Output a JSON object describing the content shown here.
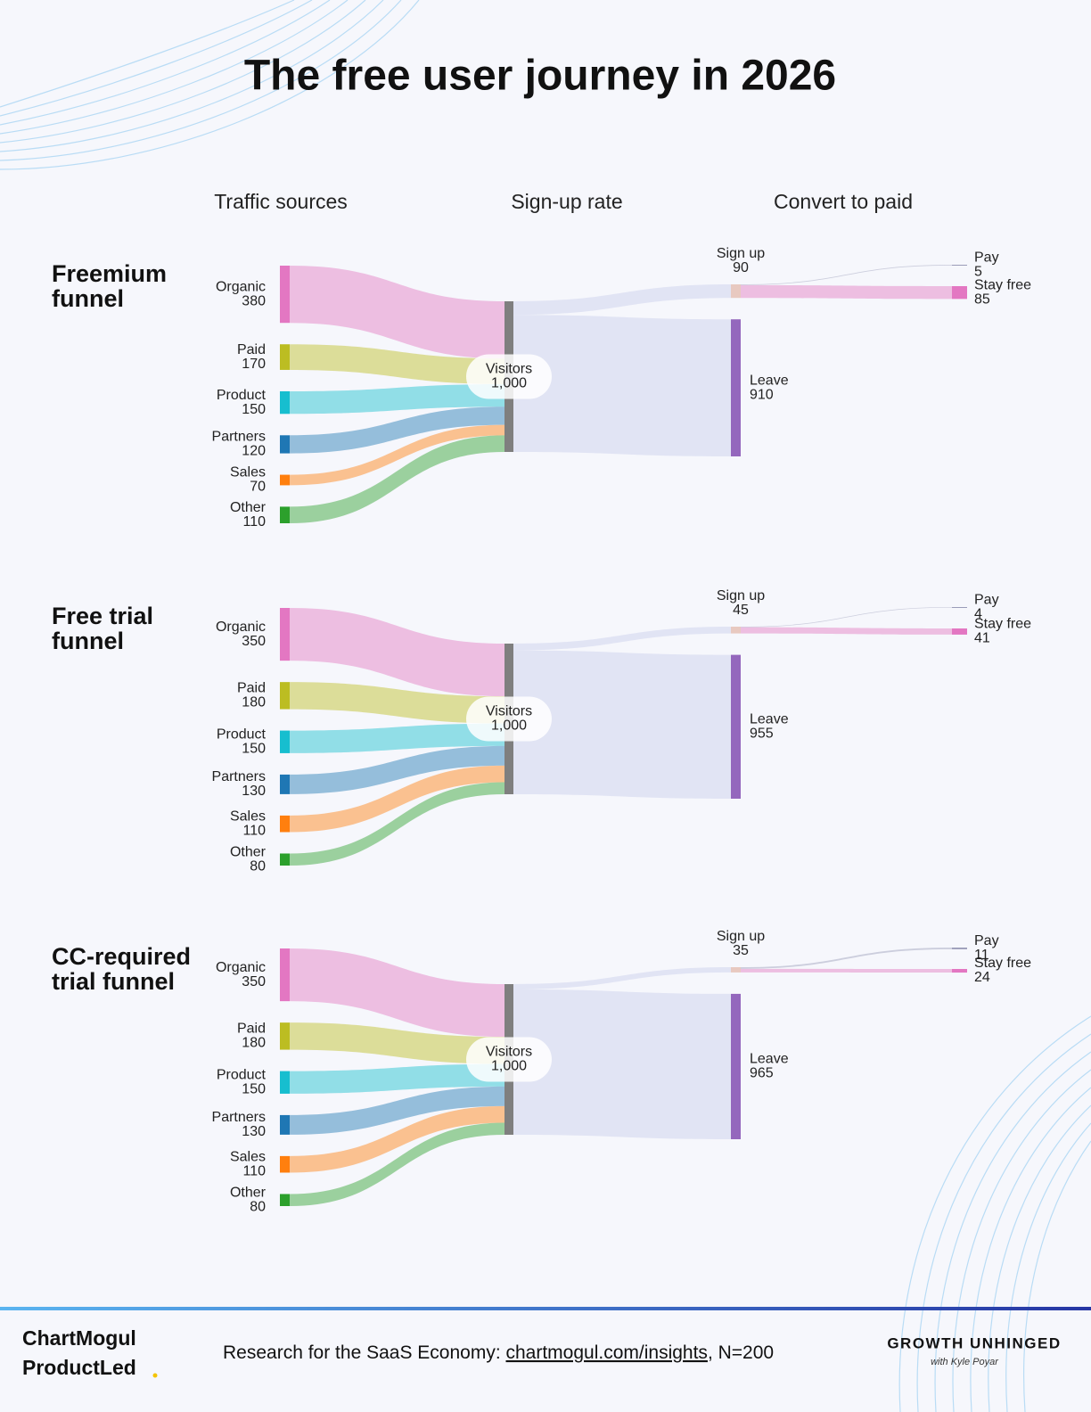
{
  "title": "The free user journey in 2026",
  "column_headers": [
    "Traffic sources",
    "Sign-up rate",
    "Convert to paid"
  ],
  "chart_data": [
    {
      "type": "sankey",
      "title": "Freemium funnel",
      "nodes": [
        {
          "name": "Organic",
          "value": 380,
          "color": "#e377c2"
        },
        {
          "name": "Paid",
          "value": 170,
          "color": "#bcbd22"
        },
        {
          "name": "Product",
          "value": 150,
          "color": "#17becf"
        },
        {
          "name": "Partners",
          "value": 120,
          "color": "#1f77b4"
        },
        {
          "name": "Sales",
          "value": 70,
          "color": "#ff7f0e"
        },
        {
          "name": "Other",
          "value": 110,
          "color": "#2ca02c"
        },
        {
          "name": "Visitors",
          "value": 1000,
          "value_label": "1,000",
          "color": "#7f7f7f"
        },
        {
          "name": "Sign up",
          "value": 90,
          "color": "#e8c9c0"
        },
        {
          "name": "Leave",
          "value": 910,
          "color": "#9467bd"
        },
        {
          "name": "Pay",
          "value": 5,
          "color": "#9a9cb8"
        },
        {
          "name": "Stay free",
          "value": 85,
          "color": "#e377c2"
        }
      ],
      "links": [
        {
          "source": 0,
          "target": 6
        },
        {
          "source": 1,
          "target": 6
        },
        {
          "source": 2,
          "target": 6
        },
        {
          "source": 3,
          "target": 6
        },
        {
          "source": 4,
          "target": 6
        },
        {
          "source": 5,
          "target": 6
        },
        {
          "source": 6,
          "target": 7,
          "color": "#c7cdec"
        },
        {
          "source": 6,
          "target": 8,
          "color": "#c7cdec"
        },
        {
          "source": 7,
          "target": 9,
          "color": "#9a9cb8"
        },
        {
          "source": 7,
          "target": 10,
          "color": "#e377c2"
        }
      ]
    },
    {
      "type": "sankey",
      "title": "Free trial funnel",
      "nodes": [
        {
          "name": "Organic",
          "value": 350,
          "color": "#e377c2"
        },
        {
          "name": "Paid",
          "value": 180,
          "color": "#bcbd22"
        },
        {
          "name": "Product",
          "value": 150,
          "color": "#17becf"
        },
        {
          "name": "Partners",
          "value": 130,
          "color": "#1f77b4"
        },
        {
          "name": "Sales",
          "value": 110,
          "color": "#ff7f0e"
        },
        {
          "name": "Other",
          "value": 80,
          "color": "#2ca02c"
        },
        {
          "name": "Visitors",
          "value": 1000,
          "value_label": "1,000",
          "color": "#7f7f7f"
        },
        {
          "name": "Sign up",
          "value": 45,
          "color": "#e8c9c0"
        },
        {
          "name": "Leave",
          "value": 955,
          "color": "#9467bd"
        },
        {
          "name": "Pay",
          "value": 4,
          "color": "#9a9cb8"
        },
        {
          "name": "Stay free",
          "value": 41,
          "color": "#e377c2"
        }
      ],
      "links": [
        {
          "source": 0,
          "target": 6
        },
        {
          "source": 1,
          "target": 6
        },
        {
          "source": 2,
          "target": 6
        },
        {
          "source": 3,
          "target": 6
        },
        {
          "source": 4,
          "target": 6
        },
        {
          "source": 5,
          "target": 6
        },
        {
          "source": 6,
          "target": 7,
          "color": "#c7cdec"
        },
        {
          "source": 6,
          "target": 8,
          "color": "#c7cdec"
        },
        {
          "source": 7,
          "target": 9,
          "color": "#9a9cb8"
        },
        {
          "source": 7,
          "target": 10,
          "color": "#e377c2"
        }
      ]
    },
    {
      "type": "sankey",
      "title": "CC-required trial funnel",
      "nodes": [
        {
          "name": "Organic",
          "value": 350,
          "color": "#e377c2"
        },
        {
          "name": "Paid",
          "value": 180,
          "color": "#bcbd22"
        },
        {
          "name": "Product",
          "value": 150,
          "color": "#17becf"
        },
        {
          "name": "Partners",
          "value": 130,
          "color": "#1f77b4"
        },
        {
          "name": "Sales",
          "value": 110,
          "color": "#ff7f0e"
        },
        {
          "name": "Other",
          "value": 80,
          "color": "#2ca02c"
        },
        {
          "name": "Visitors",
          "value": 1000,
          "value_label": "1,000",
          "color": "#7f7f7f"
        },
        {
          "name": "Sign up",
          "value": 35,
          "color": "#e8c9c0"
        },
        {
          "name": "Leave",
          "value": 965,
          "color": "#9467bd"
        },
        {
          "name": "Pay",
          "value": 11,
          "color": "#9a9cb8"
        },
        {
          "name": "Stay free",
          "value": 24,
          "color": "#e377c2"
        }
      ],
      "links": [
        {
          "source": 0,
          "target": 6
        },
        {
          "source": 1,
          "target": 6
        },
        {
          "source": 2,
          "target": 6
        },
        {
          "source": 3,
          "target": 6
        },
        {
          "source": 4,
          "target": 6
        },
        {
          "source": 5,
          "target": 6
        },
        {
          "source": 6,
          "target": 7,
          "color": "#c7cdec"
        },
        {
          "source": 6,
          "target": 8,
          "color": "#c7cdec"
        },
        {
          "source": 7,
          "target": 9,
          "color": "#9a9cb8"
        },
        {
          "source": 7,
          "target": 10,
          "color": "#e377c2"
        }
      ]
    }
  ],
  "footer": {
    "logo_left_1": "ChartMogul",
    "logo_left_2": "ProductLed",
    "research_prefix": "Research for the SaaS Economy: ",
    "research_link": "chartmogul.com/insights",
    "research_suffix": ", N=200",
    "brand": "GROWTH UNHINGED",
    "brand_sub": "with Kyle Poyar"
  }
}
